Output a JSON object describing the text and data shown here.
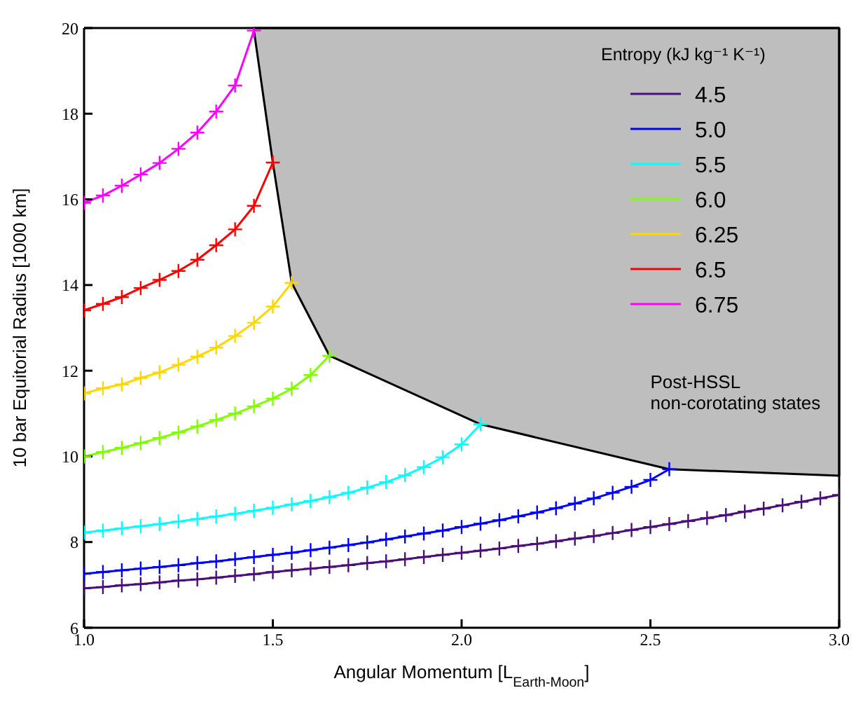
{
  "chart_data": {
    "type": "line",
    "xlabel": "Angular Momentum [L$_{Earth-Moon}$]",
    "ylabel": "10 bar Equitorial Radius [1000 km]",
    "legend_title": "Entropy (kJ kg⁻¹ K⁻¹)",
    "legend": "top right",
    "marker": "cross",
    "line_style": "solid",
    "grid": false,
    "xlim": [
      1,
      3
    ],
    "xticks": [
      {
        "value": 1,
        "label": "1.0"
      },
      {
        "value": 1.5,
        "label": "1.5"
      },
      {
        "value": 2,
        "label": "2.0"
      },
      {
        "value": 2.5,
        "label": "2.5"
      },
      {
        "value": 3,
        "label": "3.0"
      }
    ],
    "ylim": [
      6,
      20
    ],
    "yticks": [
      6,
      8,
      10,
      12,
      14,
      16,
      18,
      20
    ],
    "annotations": [
      "Post-HSSL\nnon-corotating states"
    ],
    "series": [
      {
        "type": "area",
        "marker": "none",
        "color": "#bebebe",
        "x": [
          1.45,
          1.5,
          1.55,
          1.65,
          2.05,
          2.55,
          3.0,
          3.0,
          1.45
        ],
        "values": [
          19.94,
          16.86,
          14.05,
          12.35,
          10.75,
          9.7,
          9.55,
          20,
          20
        ]
      },
      {
        "name": "4.5",
        "color": "#4b0f7a",
        "x": [
          1,
          1.05,
          1.1,
          1.15,
          1.2,
          1.25,
          1.3,
          1.35,
          1.4,
          1.45,
          1.5,
          1.55,
          1.6,
          1.65,
          1.7,
          1.75,
          1.8,
          1.85,
          1.9,
          1.95,
          2,
          2.05,
          2.1,
          2.15,
          2.2,
          2.25,
          2.3,
          2.35,
          2.4,
          2.45,
          2.5,
          2.55,
          2.6,
          2.65,
          2.7,
          2.75,
          2.8,
          2.85,
          2.9,
          2.95,
          3
        ],
        "values": [
          6.92,
          6.95,
          6.99,
          7.02,
          7.06,
          7.1,
          7.13,
          7.17,
          7.21,
          7.25,
          7.3,
          7.34,
          7.38,
          7.42,
          7.46,
          7.51,
          7.55,
          7.6,
          7.65,
          7.7,
          7.75,
          7.8,
          7.85,
          7.91,
          7.96,
          8.02,
          8.08,
          8.14,
          8.21,
          8.28,
          8.35,
          8.42,
          8.49,
          8.56,
          8.63,
          8.71,
          8.78,
          8.86,
          8.94,
          9.02,
          9.1
        ]
      },
      {
        "name": "5.0",
        "color": "#0000ff",
        "x": [
          1,
          1.05,
          1.1,
          1.15,
          1.2,
          1.25,
          1.3,
          1.35,
          1.4,
          1.45,
          1.5,
          1.55,
          1.6,
          1.65,
          1.7,
          1.75,
          1.8,
          1.85,
          1.9,
          1.95,
          2,
          2.05,
          2.1,
          2.15,
          2.2,
          2.25,
          2.3,
          2.35,
          2.4,
          2.45,
          2.5,
          2.55
        ],
        "values": [
          7.26,
          7.3,
          7.34,
          7.38,
          7.42,
          7.46,
          7.51,
          7.55,
          7.6,
          7.65,
          7.7,
          7.75,
          7.81,
          7.87,
          7.93,
          7.99,
          8.06,
          8.13,
          8.2,
          8.27,
          8.35,
          8.43,
          8.51,
          8.6,
          8.69,
          8.79,
          8.9,
          9.02,
          9.15,
          9.29,
          9.45,
          9.7
        ]
      },
      {
        "name": "5.5",
        "color": "#00ffff",
        "x": [
          1,
          1.05,
          1.1,
          1.15,
          1.2,
          1.25,
          1.3,
          1.35,
          1.4,
          1.45,
          1.5,
          1.55,
          1.6,
          1.65,
          1.7,
          1.75,
          1.8,
          1.85,
          1.9,
          1.95,
          2,
          2.05
        ],
        "values": [
          8.22,
          8.27,
          8.32,
          8.37,
          8.42,
          8.48,
          8.54,
          8.6,
          8.66,
          8.73,
          8.8,
          8.88,
          8.96,
          9.05,
          9.15,
          9.27,
          9.4,
          9.56,
          9.75,
          9.98,
          10.28,
          10.75
        ]
      },
      {
        "name": "6.0",
        "color": "#7fff00",
        "x": [
          1,
          1.05,
          1.1,
          1.15,
          1.2,
          1.25,
          1.3,
          1.35,
          1.4,
          1.45,
          1.5,
          1.55,
          1.6,
          1.65
        ],
        "values": [
          10.0,
          10.1,
          10.2,
          10.31,
          10.43,
          10.56,
          10.7,
          10.85,
          11.0,
          11.17,
          11.35,
          11.58,
          11.9,
          12.35
        ]
      },
      {
        "name": "6.25",
        "color": "#ffd700",
        "x": [
          1,
          1.05,
          1.1,
          1.15,
          1.2,
          1.25,
          1.3,
          1.35,
          1.4,
          1.45,
          1.5,
          1.55
        ],
        "values": [
          11.47,
          11.59,
          11.68,
          11.83,
          11.96,
          12.14,
          12.33,
          12.54,
          12.81,
          13.12,
          13.5,
          14.05
        ]
      },
      {
        "name": "6.5",
        "color": "#ff0000",
        "x": [
          1,
          1.05,
          1.1,
          1.15,
          1.2,
          1.25,
          1.3,
          1.35,
          1.4,
          1.45,
          1.5
        ],
        "values": [
          13.41,
          13.56,
          13.72,
          13.93,
          14.12,
          14.33,
          14.59,
          14.93,
          15.3,
          15.85,
          16.86
        ]
      },
      {
        "name": "6.75",
        "color": "#ff00ff",
        "x": [
          1,
          1.05,
          1.1,
          1.15,
          1.2,
          1.25,
          1.3,
          1.35,
          1.4,
          1.45
        ],
        "values": [
          15.92,
          16.09,
          16.32,
          16.58,
          16.85,
          17.18,
          17.56,
          18.05,
          18.66,
          19.94
        ]
      }
    ]
  }
}
